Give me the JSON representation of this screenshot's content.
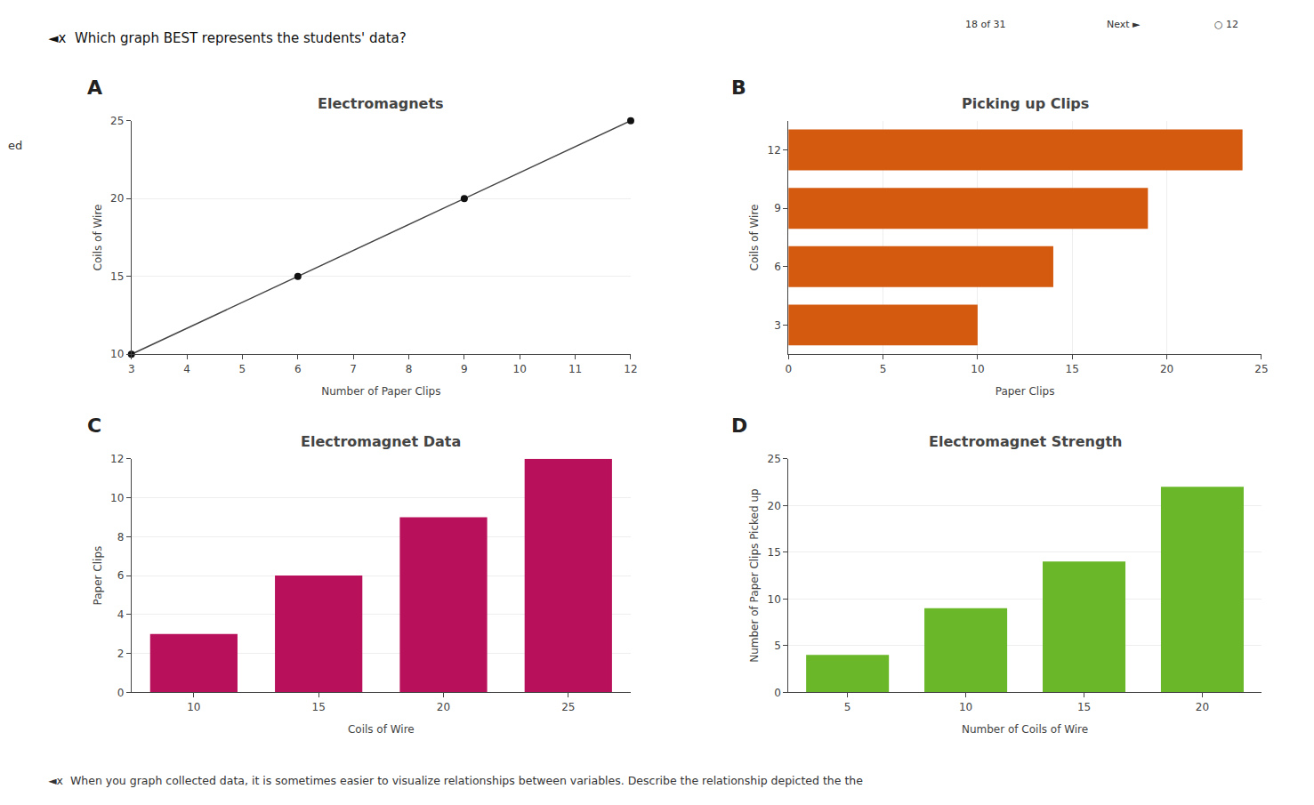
{
  "title": "◄x  Which graph BEST represents the students' data?",
  "annotations": [
    "◄x  When you graph collected data, it is sometimes easier to visualize relationships between variables. Describe the relationship depicted the the",
    "18 of 31",
    "Next ►",
    "○ 12",
    "ed"
  ],
  "chart_data": [
    {
      "type": "line",
      "title": "Electromagnets",
      "annotations": [
        "A"
      ],
      "xlabel": "Number of Paper Clips",
      "ylabel": "Coils of Wire",
      "x": [
        3,
        6,
        9,
        12
      ],
      "series": [
        {
          "type": "line",
          "color": "#444444",
          "values": [
            10,
            15,
            20,
            25
          ]
        },
        {
          "type": "scatter",
          "color": "#111111",
          "values": [
            10,
            15,
            20,
            25
          ]
        }
      ],
      "xlim": [
        3,
        12
      ],
      "ylim": [
        10,
        25
      ],
      "xticks": [
        3,
        4,
        5,
        6,
        7,
        8,
        9,
        10,
        11,
        12
      ],
      "yticks": [
        10,
        15,
        20,
        25
      ],
      "grid": true
    },
    {
      "type": "bar",
      "orientation": "horizontal",
      "title": "Picking up Clips",
      "annotations": [
        "B"
      ],
      "xlabel": "Paper Clips",
      "ylabel": "Coils of Wire",
      "categories": [
        3,
        6,
        9,
        12
      ],
      "values": [
        10,
        14,
        19,
        24
      ],
      "color": "#d45a10",
      "xlim": [
        0,
        25
      ],
      "xticks": [
        0,
        5,
        10,
        15,
        20,
        25
      ],
      "grid": true
    },
    {
      "type": "bar",
      "title": "Electromagnet Data",
      "annotations": [
        "C"
      ],
      "xlabel": "Coils of Wire",
      "ylabel": "Paper Clips",
      "categories": [
        10,
        15,
        20,
        25
      ],
      "values": [
        3,
        6,
        9,
        12
      ],
      "color": "#b8105a",
      "ylim": [
        0,
        12
      ],
      "yticks": [
        0,
        2,
        4,
        6,
        8,
        10,
        12
      ],
      "grid": true
    },
    {
      "type": "bar",
      "title": "Electromagnet Strength",
      "annotations": [
        "D"
      ],
      "xlabel": "Number of Coils of Wire",
      "ylabel": "Number of Paper Clips Picked up",
      "categories": [
        5,
        10,
        15,
        20
      ],
      "values": [
        4,
        9,
        14,
        22
      ],
      "color": "#6ab82a",
      "ylim": [
        0,
        25
      ],
      "yticks": [
        0,
        5,
        10,
        15,
        20,
        25
      ],
      "grid": true
    }
  ]
}
